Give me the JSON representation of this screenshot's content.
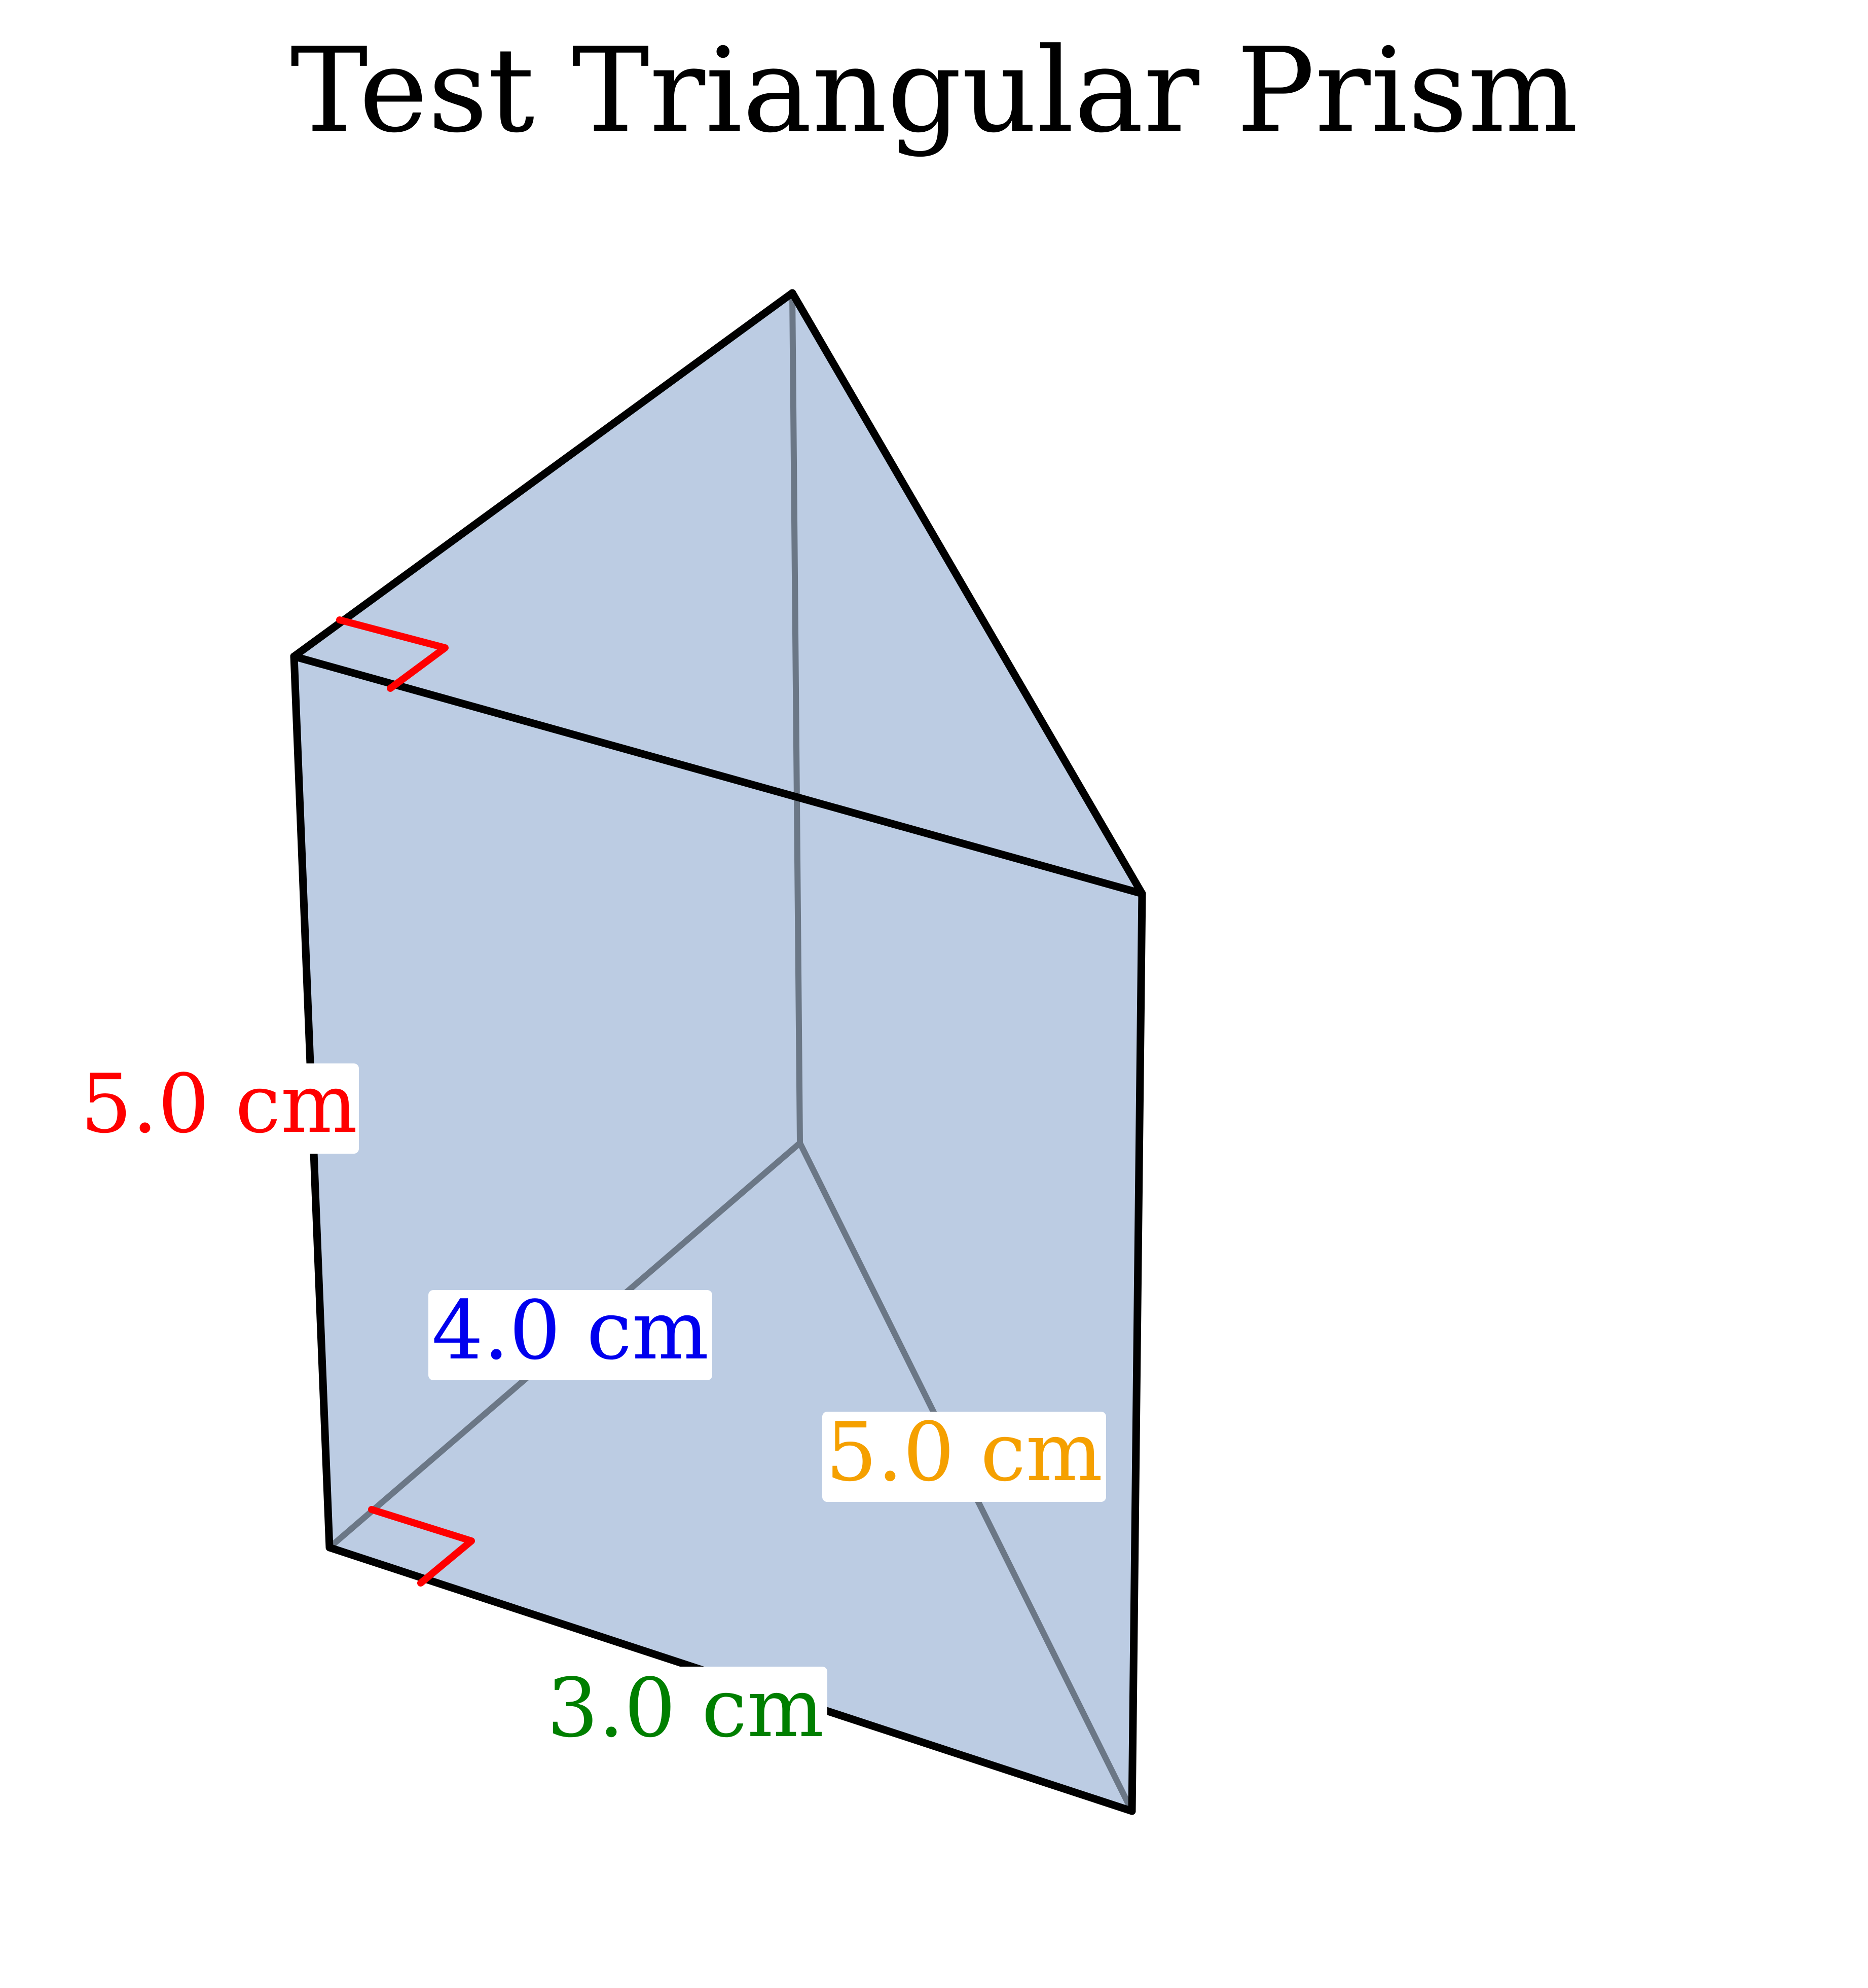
{
  "title": "Test Triangular Prism",
  "colors": {
    "face_fill": "#bccce3",
    "visible_edge": "#000000",
    "hidden_edge": "#6b7786",
    "right_angle_marker": "#ff0000"
  },
  "labels": {
    "height": {
      "text": "5.0 cm",
      "color": "#ff0000"
    },
    "leg_a": {
      "text": "4.0 cm",
      "color": "#0000ee"
    },
    "hypotenuse": {
      "text": "5.0 cm",
      "color": "#f5a000"
    },
    "leg_b": {
      "text": "3.0 cm",
      "color": "#007f00"
    }
  }
}
